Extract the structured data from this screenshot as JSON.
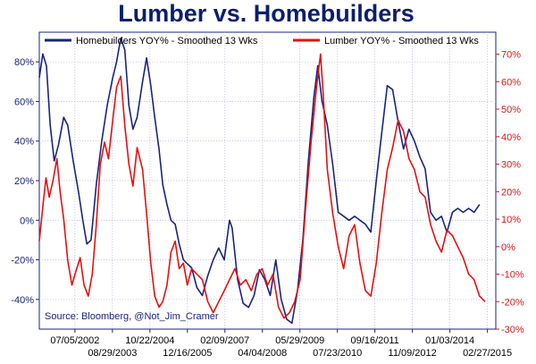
{
  "chart_data": {
    "type": "line",
    "title": "Lumber vs. Homebuilders",
    "source": "Source: Bloomberg, @Not_Jim_Cramer",
    "x_range": [
      "2001-06-01",
      "2015-06-01"
    ],
    "x_ticks": [
      {
        "label": "07/05/2002",
        "date": "2002-07-05",
        "row": 1
      },
      {
        "label": "08/29/2003",
        "date": "2003-08-29",
        "row": 2
      },
      {
        "label": "10/22/2004",
        "date": "2004-10-22",
        "row": 1
      },
      {
        "label": "12/16/2005",
        "date": "2005-12-16",
        "row": 2
      },
      {
        "label": "02/09/2007",
        "date": "2007-02-09",
        "row": 1
      },
      {
        "label": "04/04/2008",
        "date": "2008-04-04",
        "row": 2
      },
      {
        "label": "05/29/2009",
        "date": "2009-05-29",
        "row": 1
      },
      {
        "label": "07/23/2010",
        "date": "2010-07-23",
        "row": 2
      },
      {
        "label": "09/16/2011",
        "date": "2011-09-16",
        "row": 1
      },
      {
        "label": "11/09/2012",
        "date": "2012-11-09",
        "row": 2
      },
      {
        "label": "01/03/2014",
        "date": "2014-01-03",
        "row": 1
      },
      {
        "label": "02/27/2015",
        "date": "2015-02-27",
        "row": 2
      }
    ],
    "y_left": {
      "min": -55,
      "max": 95,
      "ticks": [
        -40,
        -20,
        0,
        20,
        40,
        60,
        80
      ],
      "labels": [
        "-40%",
        "-20%",
        "0%",
        "20%",
        "40%",
        "60%",
        "80%"
      ]
    },
    "y_right": {
      "min": -30,
      "max": 78,
      "ticks": [
        -30,
        -20,
        -10,
        0,
        10,
        20,
        30,
        40,
        50,
        60,
        70
      ],
      "labels": [
        "-30%",
        "-20%",
        "-10%",
        "0%",
        "10%",
        "20%",
        "30%",
        "40%",
        "50%",
        "60%",
        "70%"
      ]
    },
    "grid": true,
    "legend_position": "top",
    "series": [
      {
        "name": "Homebuilders YOY% - Smoothed 13 Wks",
        "color": "#1a237e",
        "axis": "left",
        "points": [
          [
            "2001-06-01",
            72
          ],
          [
            "2001-07-10",
            84
          ],
          [
            "2001-08-20",
            78
          ],
          [
            "2001-10-01",
            48
          ],
          [
            "2001-11-15",
            30
          ],
          [
            "2002-01-01",
            38
          ],
          [
            "2002-03-01",
            52
          ],
          [
            "2002-04-15",
            48
          ],
          [
            "2002-06-15",
            30
          ],
          [
            "2002-08-15",
            14
          ],
          [
            "2002-10-01",
            0
          ],
          [
            "2002-11-15",
            -12
          ],
          [
            "2003-01-01",
            -10
          ],
          [
            "2003-03-01",
            18
          ],
          [
            "2003-05-01",
            40
          ],
          [
            "2003-07-01",
            58
          ],
          [
            "2003-09-01",
            72
          ],
          [
            "2003-10-15",
            80
          ],
          [
            "2003-12-01",
            92
          ],
          [
            "2004-01-15",
            86
          ],
          [
            "2004-03-01",
            58
          ],
          [
            "2004-04-15",
            46
          ],
          [
            "2004-06-01",
            52
          ],
          [
            "2004-08-01",
            70
          ],
          [
            "2004-09-15",
            82
          ],
          [
            "2004-11-01",
            68
          ],
          [
            "2004-12-15",
            52
          ],
          [
            "2005-02-01",
            36
          ],
          [
            "2005-03-15",
            18
          ],
          [
            "2005-05-01",
            8
          ],
          [
            "2005-06-15",
            0
          ],
          [
            "2005-08-01",
            -2
          ],
          [
            "2005-09-15",
            -12
          ],
          [
            "2005-11-01",
            -20
          ],
          [
            "2005-12-15",
            -22
          ],
          [
            "2006-02-01",
            -24
          ],
          [
            "2006-04-01",
            -34
          ],
          [
            "2006-06-01",
            -38
          ],
          [
            "2006-08-01",
            -28
          ],
          [
            "2006-10-01",
            -20
          ],
          [
            "2006-12-01",
            -14
          ],
          [
            "2007-02-01",
            -20
          ],
          [
            "2007-04-01",
            0
          ],
          [
            "2007-05-01",
            -4
          ],
          [
            "2007-07-01",
            -30
          ],
          [
            "2007-09-01",
            -42
          ],
          [
            "2007-11-01",
            -44
          ],
          [
            "2008-01-01",
            -38
          ],
          [
            "2008-03-01",
            -25
          ],
          [
            "2008-05-01",
            -30
          ],
          [
            "2008-07-01",
            -38
          ],
          [
            "2008-09-01",
            -20
          ],
          [
            "2008-11-01",
            -40
          ],
          [
            "2009-01-01",
            -50
          ],
          [
            "2009-03-01",
            -52
          ],
          [
            "2009-05-01",
            -36
          ],
          [
            "2009-07-01",
            -10
          ],
          [
            "2009-09-01",
            30
          ],
          [
            "2009-11-01",
            62
          ],
          [
            "2009-12-15",
            78
          ],
          [
            "2010-02-01",
            60
          ],
          [
            "2010-04-01",
            48
          ],
          [
            "2010-06-01",
            28
          ],
          [
            "2010-08-01",
            4
          ],
          [
            "2010-10-01",
            2
          ],
          [
            "2010-12-01",
            0
          ],
          [
            "2011-02-01",
            2
          ],
          [
            "2011-04-01",
            0
          ],
          [
            "2011-06-01",
            -2
          ],
          [
            "2011-08-01",
            -6
          ],
          [
            "2011-10-01",
            20
          ],
          [
            "2011-12-01",
            44
          ],
          [
            "2012-02-01",
            68
          ],
          [
            "2012-04-01",
            66
          ],
          [
            "2012-06-01",
            50
          ],
          [
            "2012-08-01",
            36
          ],
          [
            "2012-10-01",
            46
          ],
          [
            "2012-12-01",
            40
          ],
          [
            "2013-02-01",
            32
          ],
          [
            "2013-04-01",
            26
          ],
          [
            "2013-06-01",
            4
          ],
          [
            "2013-08-01",
            0
          ],
          [
            "2013-10-01",
            2
          ],
          [
            "2013-12-01",
            -6
          ],
          [
            "2014-02-01",
            4
          ],
          [
            "2014-04-01",
            6
          ],
          [
            "2014-06-01",
            4
          ],
          [
            "2014-08-01",
            6
          ],
          [
            "2014-10-01",
            4
          ],
          [
            "2014-12-01",
            8
          ]
        ]
      },
      {
        "name": "Lumber YOY% - Smoothed 13 Wks",
        "color": "#e21212",
        "axis": "right",
        "points": [
          [
            "2001-06-01",
            2
          ],
          [
            "2001-07-15",
            16
          ],
          [
            "2001-08-15",
            25
          ],
          [
            "2001-09-20",
            18
          ],
          [
            "2001-11-01",
            24
          ],
          [
            "2001-12-15",
            32
          ],
          [
            "2002-01-20",
            20
          ],
          [
            "2002-03-01",
            10
          ],
          [
            "2002-04-15",
            -5
          ],
          [
            "2002-06-01",
            -14
          ],
          [
            "2002-07-15",
            -9
          ],
          [
            "2002-09-01",
            -4
          ],
          [
            "2002-10-15",
            -14
          ],
          [
            "2002-12-01",
            -18
          ],
          [
            "2003-01-15",
            -10
          ],
          [
            "2003-03-01",
            8
          ],
          [
            "2003-04-15",
            30
          ],
          [
            "2003-06-01",
            38
          ],
          [
            "2003-07-15",
            32
          ],
          [
            "2003-09-01",
            46
          ],
          [
            "2003-10-15",
            58
          ],
          [
            "2003-12-01",
            62
          ],
          [
            "2004-01-15",
            44
          ],
          [
            "2004-03-01",
            30
          ],
          [
            "2004-04-15",
            22
          ],
          [
            "2004-06-01",
            36
          ],
          [
            "2004-08-01",
            28
          ],
          [
            "2004-09-15",
            12
          ],
          [
            "2004-11-01",
            -6
          ],
          [
            "2004-12-15",
            -18
          ],
          [
            "2005-02-01",
            -22
          ],
          [
            "2005-03-15",
            -20
          ],
          [
            "2005-05-01",
            -14
          ],
          [
            "2005-06-15",
            -2
          ],
          [
            "2005-08-01",
            2
          ],
          [
            "2005-09-15",
            -8
          ],
          [
            "2005-11-01",
            -6
          ],
          [
            "2005-12-15",
            -14
          ],
          [
            "2006-02-01",
            -8
          ],
          [
            "2006-04-01",
            -10
          ],
          [
            "2006-06-01",
            -12
          ],
          [
            "2006-08-01",
            -20
          ],
          [
            "2006-10-01",
            -24
          ],
          [
            "2006-12-01",
            -20
          ],
          [
            "2007-02-01",
            -16
          ],
          [
            "2007-04-01",
            -12
          ],
          [
            "2007-06-01",
            -8
          ],
          [
            "2007-08-01",
            -14
          ],
          [
            "2007-10-01",
            -12
          ],
          [
            "2007-12-01",
            -16
          ],
          [
            "2008-02-01",
            -10
          ],
          [
            "2008-04-01",
            -8
          ],
          [
            "2008-06-01",
            -14
          ],
          [
            "2008-08-01",
            -10
          ],
          [
            "2008-10-01",
            -22
          ],
          [
            "2008-12-01",
            -26
          ],
          [
            "2009-02-01",
            -24
          ],
          [
            "2009-04-01",
            -20
          ],
          [
            "2009-06-01",
            -12
          ],
          [
            "2009-08-01",
            14
          ],
          [
            "2009-10-01",
            38
          ],
          [
            "2009-12-01",
            58
          ],
          [
            "2010-01-15",
            70
          ],
          [
            "2010-02-15",
            55
          ],
          [
            "2010-04-01",
            28
          ],
          [
            "2010-06-01",
            12
          ],
          [
            "2010-08-01",
            0
          ],
          [
            "2010-10-01",
            -8
          ],
          [
            "2010-12-01",
            4
          ],
          [
            "2011-02-01",
            8
          ],
          [
            "2011-04-01",
            -6
          ],
          [
            "2011-06-01",
            -16
          ],
          [
            "2011-08-01",
            -18
          ],
          [
            "2011-10-01",
            -6
          ],
          [
            "2011-12-01",
            12
          ],
          [
            "2012-02-01",
            28
          ],
          [
            "2012-04-01",
            36
          ],
          [
            "2012-06-01",
            46
          ],
          [
            "2012-08-01",
            42
          ],
          [
            "2012-10-01",
            32
          ],
          [
            "2012-12-01",
            28
          ],
          [
            "2013-02-01",
            20
          ],
          [
            "2013-04-01",
            18
          ],
          [
            "2013-06-01",
            8
          ],
          [
            "2013-08-01",
            2
          ],
          [
            "2013-10-01",
            -2
          ],
          [
            "2013-12-01",
            6
          ],
          [
            "2014-02-01",
            4
          ],
          [
            "2014-04-01",
            0
          ],
          [
            "2014-06-01",
            -4
          ],
          [
            "2014-08-01",
            -10
          ],
          [
            "2014-10-01",
            -12
          ],
          [
            "2014-12-01",
            -18
          ],
          [
            "2015-02-01",
            -20
          ]
        ]
      }
    ]
  }
}
